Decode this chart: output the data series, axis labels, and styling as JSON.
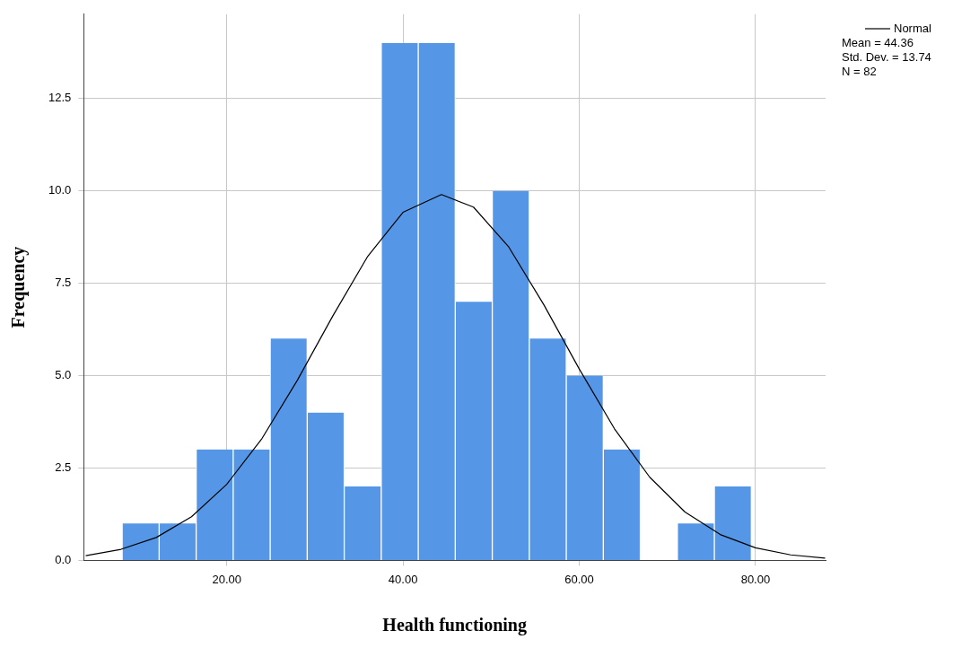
{
  "chart_data": {
    "type": "histogram",
    "xlabel": "Health functioning",
    "ylabel": "Frequency",
    "bins": [
      8.13,
      12.33,
      16.53,
      20.73,
      24.93,
      29.13,
      33.33,
      37.53,
      41.73,
      45.93,
      50.13,
      54.33,
      58.53,
      62.73,
      66.93,
      71.13,
      75.33,
      79.53
    ],
    "values": [
      1,
      1,
      3,
      3,
      6,
      4,
      2,
      14,
      14,
      7,
      10,
      6,
      5,
      3,
      0,
      1,
      2
    ],
    "color": "#5596e6",
    "series": [
      {
        "name": "Normal",
        "type": "line",
        "color": "#000000",
        "x": [
          4,
          8,
          12,
          16,
          20,
          24,
          28,
          32,
          36,
          40,
          44.36,
          48,
          52,
          56,
          60,
          64,
          68,
          72,
          76,
          80,
          84,
          87.9
        ],
        "values": [
          0.13,
          0.3,
          0.62,
          1.18,
          2.06,
          3.3,
          4.87,
          6.6,
          8.23,
          9.42,
          9.9,
          9.56,
          8.48,
          6.91,
          5.18,
          3.56,
          2.25,
          1.31,
          0.7,
          0.34,
          0.15,
          0.06
        ]
      }
    ],
    "annotations": [
      "Mean = 44.36",
      "Std. Dev. = 13.74",
      "N = 82"
    ],
    "xlim": [
      3.77,
      87.95
    ],
    "ylim": [
      0,
      14.78
    ],
    "xticks": [
      {
        "value": 20,
        "label": "20.00"
      },
      {
        "value": 40,
        "label": "40.00"
      },
      {
        "value": 60,
        "label": "60.00"
      },
      {
        "value": 80,
        "label": "80.00"
      }
    ],
    "yticks": [
      {
        "value": 0,
        "label": "0.0"
      },
      {
        "value": 2.5,
        "label": "2.5"
      },
      {
        "value": 5,
        "label": "5.0"
      },
      {
        "value": 7.5,
        "label": "7.5"
      },
      {
        "value": 10,
        "label": "10.0"
      },
      {
        "value": 12.5,
        "label": "12.5"
      }
    ],
    "grid": true,
    "legend": "top right",
    "marker": "none",
    "line_style": "solid"
  }
}
